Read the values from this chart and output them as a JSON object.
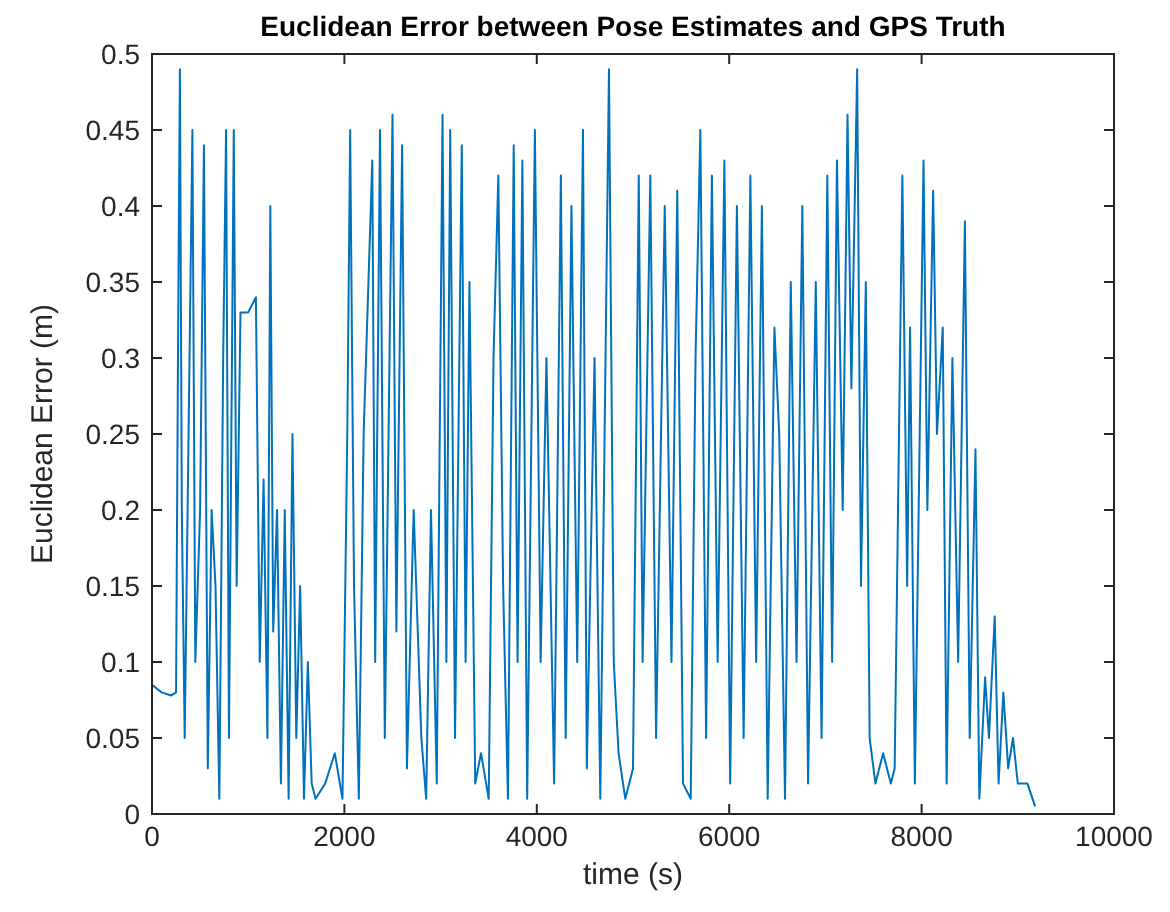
{
  "chart_data": {
    "type": "line",
    "title": "Euclidean Error between Pose Estimates and GPS Truth",
    "xlabel": "time (s)",
    "ylabel": "Euclidean Error (m)",
    "xlim": [
      0,
      10000
    ],
    "xticks": [
      0,
      2000,
      4000,
      6000,
      8000,
      10000
    ],
    "ylim": [
      0,
      0.5
    ],
    "yticks": [
      0,
      0.05,
      0.1,
      0.15,
      0.2,
      0.25,
      0.3,
      0.35,
      0.4,
      0.45,
      0.5
    ],
    "grid": false,
    "series": [
      {
        "color": "#0072bd",
        "x": [
          0,
          100,
          200,
          250,
          270,
          290,
          310,
          340,
          380,
          420,
          450,
          500,
          540,
          580,
          620,
          660,
          700,
          740,
          770,
          800,
          850,
          880,
          920,
          1000,
          1080,
          1120,
          1160,
          1200,
          1230,
          1260,
          1300,
          1340,
          1380,
          1420,
          1460,
          1500,
          1540,
          1580,
          1620,
          1660,
          1700,
          1800,
          1900,
          1980,
          2030,
          2060,
          2100,
          2150,
          2200,
          2290,
          2320,
          2370,
          2420,
          2500,
          2540,
          2600,
          2650,
          2720,
          2800,
          2850,
          2900,
          2960,
          3020,
          3060,
          3100,
          3150,
          3220,
          3260,
          3300,
          3360,
          3420,
          3500,
          3550,
          3600,
          3650,
          3700,
          3760,
          3800,
          3850,
          3900,
          3980,
          4040,
          4100,
          4180,
          4250,
          4300,
          4360,
          4420,
          4480,
          4520,
          4600,
          4660,
          4750,
          4800,
          4850,
          4920,
          5000,
          5060,
          5100,
          5180,
          5240,
          5330,
          5400,
          5460,
          5520,
          5600,
          5650,
          5700,
          5760,
          5820,
          5880,
          5950,
          6010,
          6080,
          6150,
          6220,
          6280,
          6340,
          6400,
          6470,
          6520,
          6580,
          6640,
          6700,
          6760,
          6820,
          6900,
          6960,
          7020,
          7070,
          7120,
          7180,
          7230,
          7270,
          7330,
          7370,
          7420,
          7460,
          7520,
          7600,
          7680,
          7720,
          7800,
          7850,
          7880,
          7930,
          8020,
          8060,
          8120,
          8160,
          8220,
          8260,
          8320,
          8380,
          8450,
          8500,
          8560,
          8600,
          8660,
          8700,
          8760,
          8800,
          8850,
          8900,
          8950,
          9000,
          9100,
          9180
        ],
        "values": [
          0.085,
          0.08,
          0.078,
          0.08,
          0.3,
          0.49,
          0.2,
          0.05,
          0.25,
          0.45,
          0.1,
          0.2,
          0.44,
          0.03,
          0.2,
          0.15,
          0.01,
          0.3,
          0.45,
          0.05,
          0.45,
          0.15,
          0.33,
          0.33,
          0.34,
          0.1,
          0.22,
          0.05,
          0.4,
          0.12,
          0.2,
          0.02,
          0.2,
          0.01,
          0.25,
          0.05,
          0.15,
          0.01,
          0.1,
          0.02,
          0.01,
          0.02,
          0.04,
          0.01,
          0.25,
          0.45,
          0.15,
          0.01,
          0.25,
          0.43,
          0.1,
          0.45,
          0.05,
          0.46,
          0.12,
          0.44,
          0.03,
          0.2,
          0.05,
          0.01,
          0.2,
          0.02,
          0.46,
          0.1,
          0.45,
          0.05,
          0.44,
          0.1,
          0.35,
          0.02,
          0.04,
          0.01,
          0.3,
          0.42,
          0.15,
          0.01,
          0.44,
          0.1,
          0.43,
          0.01,
          0.45,
          0.1,
          0.3,
          0.02,
          0.42,
          0.05,
          0.4,
          0.1,
          0.45,
          0.03,
          0.3,
          0.01,
          0.49,
          0.1,
          0.04,
          0.01,
          0.03,
          0.42,
          0.1,
          0.42,
          0.05,
          0.4,
          0.1,
          0.41,
          0.02,
          0.01,
          0.3,
          0.45,
          0.05,
          0.42,
          0.1,
          0.43,
          0.02,
          0.4,
          0.05,
          0.42,
          0.1,
          0.4,
          0.01,
          0.32,
          0.25,
          0.01,
          0.35,
          0.1,
          0.4,
          0.02,
          0.35,
          0.05,
          0.42,
          0.1,
          0.43,
          0.2,
          0.46,
          0.28,
          0.49,
          0.15,
          0.35,
          0.05,
          0.02,
          0.04,
          0.02,
          0.03,
          0.42,
          0.15,
          0.32,
          0.02,
          0.43,
          0.2,
          0.41,
          0.25,
          0.32,
          0.02,
          0.3,
          0.1,
          0.39,
          0.05,
          0.24,
          0.01,
          0.09,
          0.05,
          0.13,
          0.02,
          0.08,
          0.03,
          0.05,
          0.02,
          0.02,
          0.005
        ]
      }
    ]
  }
}
